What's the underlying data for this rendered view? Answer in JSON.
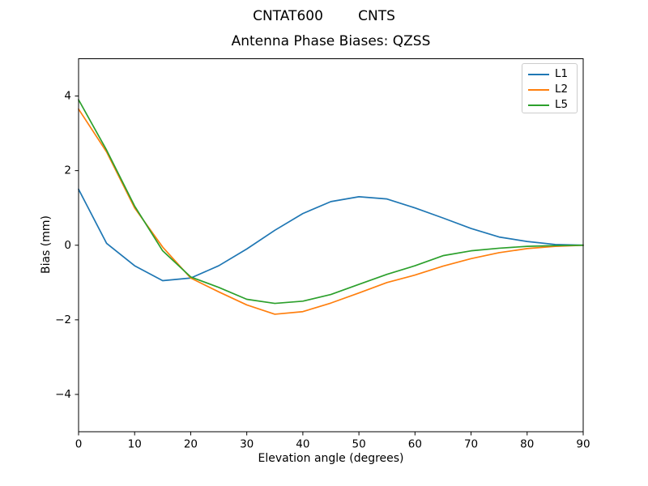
{
  "chart_data": {
    "type": "line",
    "suptitle": "CNTAT600        CNTS",
    "title": "Antenna Phase Biases: QZSS",
    "xlabel": "Elevation angle (degrees)",
    "ylabel": "Bias (mm)",
    "xlim": [
      0,
      90
    ],
    "ylim": [
      -5,
      5
    ],
    "x_ticks": [
      0,
      10,
      20,
      30,
      40,
      50,
      60,
      70,
      80,
      90
    ],
    "y_ticks": [
      -4,
      -2,
      0,
      2,
      4
    ],
    "grid": false,
    "legend_position": "upper right",
    "axis_color": "#000000",
    "x": [
      0,
      5,
      10,
      15,
      20,
      25,
      30,
      35,
      40,
      45,
      50,
      55,
      60,
      65,
      70,
      75,
      80,
      85,
      90
    ],
    "series": [
      {
        "name": "L1",
        "color": "#1f77b4",
        "values": [
          1.5,
          0.05,
          -0.55,
          -0.95,
          -0.88,
          -0.55,
          -0.1,
          0.4,
          0.85,
          1.17,
          1.3,
          1.24,
          1.0,
          0.73,
          0.45,
          0.22,
          0.1,
          0.02,
          0.0
        ]
      },
      {
        "name": "L2",
        "color": "#ff7f0e",
        "values": [
          3.65,
          2.5,
          1.0,
          -0.05,
          -0.88,
          -1.25,
          -1.6,
          -1.85,
          -1.78,
          -1.55,
          -1.28,
          -1.0,
          -0.8,
          -0.56,
          -0.36,
          -0.2,
          -0.09,
          -0.03,
          0.0
        ]
      },
      {
        "name": "L5",
        "color": "#2ca02c",
        "values": [
          3.9,
          2.55,
          1.05,
          -0.15,
          -0.85,
          -1.13,
          -1.45,
          -1.56,
          -1.5,
          -1.32,
          -1.05,
          -0.78,
          -0.55,
          -0.28,
          -0.15,
          -0.08,
          -0.03,
          -0.01,
          0.0
        ]
      }
    ]
  }
}
